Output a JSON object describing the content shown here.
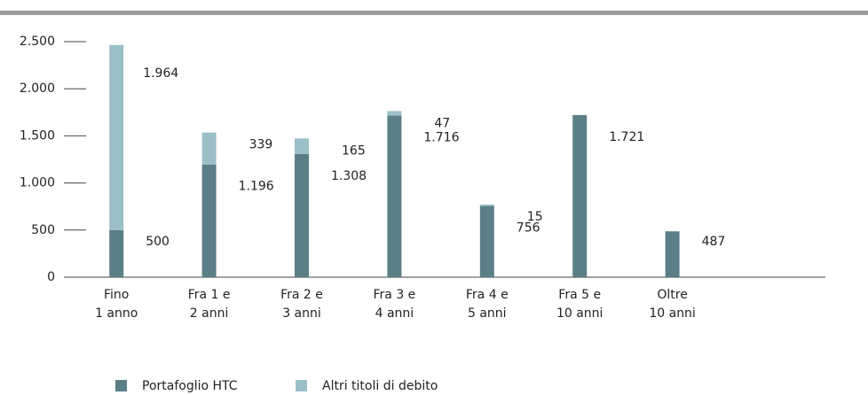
{
  "chart_data": {
    "type": "bar",
    "stacked": true,
    "categories": [
      [
        "Fino",
        "1 anno"
      ],
      [
        "Fra 1 e",
        "2 anni"
      ],
      [
        "Fra 2 e",
        "3 anni"
      ],
      [
        "Fra 3 e",
        "4 anni"
      ],
      [
        "Fra 4 e",
        "5 anni"
      ],
      [
        "Fra 5 e",
        "10 anni"
      ],
      [
        "Oltre",
        "10 anni"
      ]
    ],
    "series": [
      {
        "name": "Portafoglio HTC",
        "color": "#5b7f87",
        "values": [
          500,
          1196,
          1308,
          1716,
          756,
          1721,
          487
        ],
        "value_labels": [
          "500",
          "1.196",
          "1.308",
          "1.716",
          "756",
          "1.721",
          "487"
        ]
      },
      {
        "name": "Altri titoli di debito",
        "color": "#9bbfc6",
        "values": [
          1964,
          339,
          165,
          47,
          15,
          null,
          null
        ],
        "value_labels": [
          "1.964",
          "339",
          "165",
          "47",
          "15",
          null,
          null
        ]
      }
    ],
    "ylim": [
      0,
      2500
    ],
    "yticks": [
      0,
      500,
      {
        "value": 1000,
        "label": "1.000"
      },
      {
        "value": 1500,
        "label": "1.500"
      },
      {
        "value": 2000,
        "label": "2.000"
      },
      {
        "value": 2500,
        "label": "2.500"
      }
    ],
    "legend": "bottom"
  }
}
